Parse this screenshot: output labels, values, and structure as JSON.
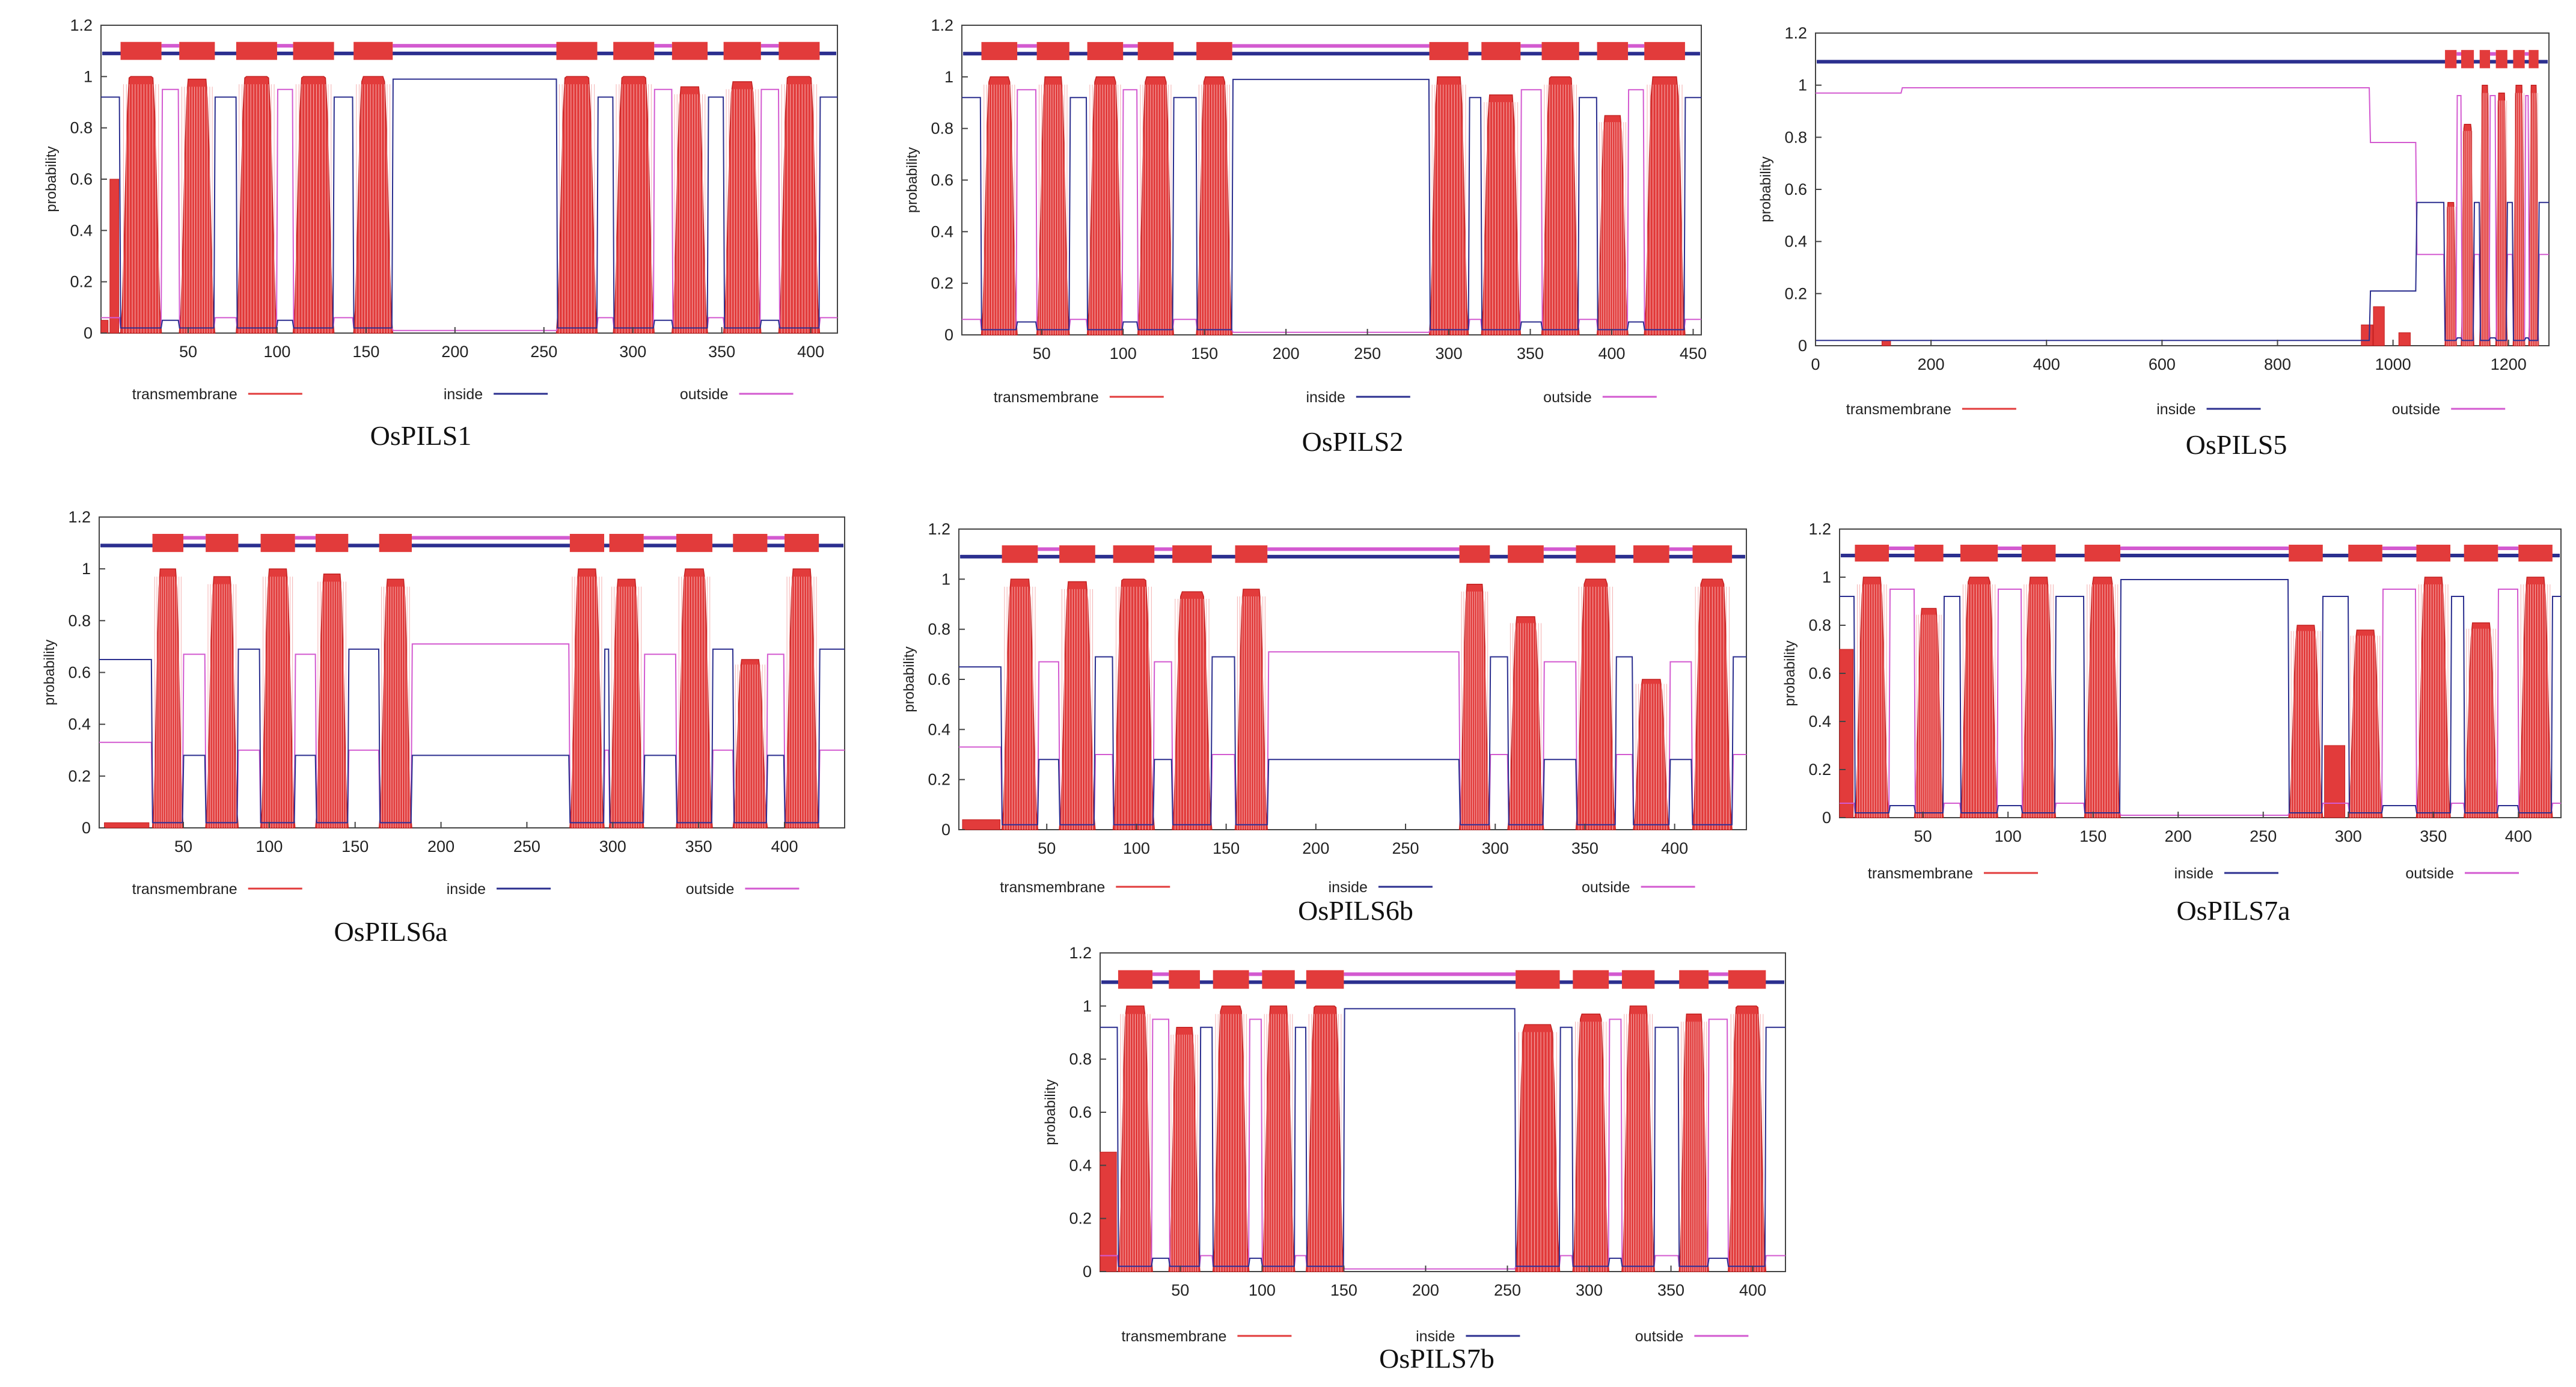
{
  "figure": {
    "panels": [
      "OsPILS1",
      "OsPILS2",
      "OsPILS5",
      "OsPILS6a",
      "OsPILS6b",
      "OsPILS7a",
      "OsPILS7b"
    ]
  },
  "colors": {
    "transmembrane": "#e23b3b",
    "inside": "#2b2f8f",
    "outside": "#d35ad0",
    "frame": "#444444"
  },
  "chart_data": [
    {
      "type": "line",
      "title": "OsPILS1",
      "length": 415,
      "xlim": [
        1,
        415
      ],
      "ylim": [
        0,
        1.2
      ],
      "ylabel": "probability",
      "xticks": [
        50,
        100,
        150,
        200,
        250,
        300,
        350,
        400
      ],
      "yticks": [
        0,
        0.2,
        0.4,
        0.6,
        0.8,
        1,
        1.2
      ],
      "legend": [
        "transmembrane",
        "inside",
        "outside"
      ],
      "tm_segments": [
        [
          12,
          35,
          1.0
        ],
        [
          45,
          65,
          0.99
        ],
        [
          77,
          100,
          1.0
        ],
        [
          109,
          132,
          1.0
        ],
        [
          143,
          165,
          1.0
        ],
        [
          257,
          280,
          1.0
        ],
        [
          289,
          312,
          1.0
        ],
        [
          322,
          342,
          0.96
        ],
        [
          351,
          372,
          0.98
        ],
        [
          382,
          405,
          1.0
        ]
      ],
      "bar_segments": [
        [
          1,
          5,
          0.05
        ],
        [
          6,
          11,
          0.6
        ]
      ],
      "inside_side": "cyto-start-in"
    },
    {
      "type": "line",
      "title": "OsPILS2",
      "length": 455,
      "xlim": [
        1,
        455
      ],
      "ylim": [
        0,
        1.2
      ],
      "ylabel": "probability",
      "xticks": [
        50,
        100,
        150,
        200,
        250,
        300,
        350,
        400,
        450
      ],
      "yticks": [
        0,
        0.2,
        0.4,
        0.6,
        0.8,
        1,
        1.2
      ],
      "legend": [
        "transmembrane",
        "inside",
        "outside"
      ],
      "tm_segments": [
        [
          13,
          35,
          1.0
        ],
        [
          47,
          67,
          1.0
        ],
        [
          78,
          100,
          1.0
        ],
        [
          109,
          131,
          1.0
        ],
        [
          145,
          167,
          1.0
        ],
        [
          288,
          312,
          1.0
        ],
        [
          320,
          344,
          0.93
        ],
        [
          357,
          380,
          1.0
        ],
        [
          391,
          410,
          0.85
        ],
        [
          420,
          445,
          1.0
        ]
      ],
      "bar_segments": [],
      "inside_side": "cyto-start-in"
    },
    {
      "type": "line",
      "title": "OsPILS5",
      "length": 1270,
      "xlim": [
        0,
        1270
      ],
      "ylim": [
        0,
        1.2
      ],
      "ylabel": "probability",
      "xticks": [
        0,
        200,
        400,
        600,
        800,
        1000,
        1200
      ],
      "yticks": [
        0,
        0.2,
        0.4,
        0.6,
        0.8,
        1,
        1.2
      ],
      "legend": [
        "transmembrane",
        "inside",
        "outside"
      ],
      "tm_segments": [
        [
          1090,
          1110,
          0.55
        ],
        [
          1118,
          1140,
          0.85
        ],
        [
          1150,
          1168,
          1.0
        ],
        [
          1178,
          1198,
          0.97
        ],
        [
          1208,
          1228,
          1.0
        ],
        [
          1235,
          1252,
          1.0
        ]
      ],
      "bar_segments": [
        [
          115,
          130,
          0.02
        ],
        [
          945,
          965,
          0.08
        ],
        [
          966,
          985,
          0.15
        ],
        [
          1010,
          1030,
          0.05
        ]
      ],
      "inside_side": "pils5"
    },
    {
      "type": "line",
      "title": "OsPILS6a",
      "length": 435,
      "xlim": [
        1,
        435
      ],
      "ylim": [
        0,
        1.2
      ],
      "ylabel": "probability",
      "xticks": [
        50,
        100,
        150,
        200,
        250,
        300,
        350,
        400
      ],
      "yticks": [
        0,
        0.2,
        0.4,
        0.6,
        0.8,
        1,
        1.2
      ],
      "legend": [
        "transmembrane",
        "inside",
        "outside"
      ],
      "tm_segments": [
        [
          32,
          50,
          1.0
        ],
        [
          63,
          82,
          0.97
        ],
        [
          95,
          115,
          1.0
        ],
        [
          127,
          146,
          0.98
        ],
        [
          164,
          183,
          0.96
        ],
        [
          275,
          295,
          1.0
        ],
        [
          298,
          318,
          0.96
        ],
        [
          337,
          358,
          1.0
        ],
        [
          370,
          390,
          0.65
        ],
        [
          400,
          420,
          1.0
        ]
      ],
      "bar_segments": [
        [
          4,
          30,
          0.02
        ]
      ],
      "inside_side": "pils6"
    },
    {
      "type": "line",
      "title": "OsPILS6b",
      "length": 440,
      "xlim": [
        1,
        440
      ],
      "ylim": [
        0,
        1.2
      ],
      "ylabel": "probability",
      "xticks": [
        50,
        100,
        150,
        200,
        250,
        300,
        350,
        400
      ],
      "yticks": [
        0,
        0.2,
        0.4,
        0.6,
        0.8,
        1,
        1.2
      ],
      "legend": [
        "transmembrane",
        "inside",
        "outside"
      ],
      "tm_segments": [
        [
          25,
          45,
          1.0
        ],
        [
          57,
          77,
          0.99
        ],
        [
          87,
          110,
          1.0
        ],
        [
          120,
          142,
          0.95
        ],
        [
          155,
          173,
          0.96
        ],
        [
          280,
          297,
          0.98
        ],
        [
          307,
          327,
          0.85
        ],
        [
          345,
          367,
          1.0
        ],
        [
          377,
          397,
          0.6
        ],
        [
          410,
          432,
          1.0
        ]
      ],
      "bar_segments": [
        [
          3,
          24,
          0.04
        ]
      ],
      "inside_side": "pils6"
    },
    {
      "type": "line",
      "title": "OsPILS7a",
      "length": 425,
      "xlim": [
        1,
        425
      ],
      "ylim": [
        0,
        1.2
      ],
      "ylabel": "probability",
      "xticks": [
        50,
        100,
        150,
        200,
        250,
        300,
        350,
        400
      ],
      "yticks": [
        0,
        0.2,
        0.4,
        0.6,
        0.8,
        1,
        1.2
      ],
      "legend": [
        "transmembrane",
        "inside",
        "outside"
      ],
      "tm_segments": [
        [
          10,
          30,
          1.0
        ],
        [
          45,
          62,
          0.87
        ],
        [
          72,
          94,
          1.0
        ],
        [
          108,
          128,
          1.0
        ],
        [
          145,
          166,
          1.0
        ],
        [
          265,
          285,
          0.8
        ],
        [
          300,
          320,
          0.78
        ],
        [
          340,
          360,
          1.0
        ],
        [
          368,
          388,
          0.81
        ],
        [
          400,
          420,
          1.0
        ]
      ],
      "bar_segments": [
        [
          1,
          9,
          0.7
        ],
        [
          286,
          298,
          0.3
        ]
      ],
      "inside_side": "cyto-start-in"
    },
    {
      "type": "line",
      "title": "OsPILS7b",
      "length": 420,
      "xlim": [
        1,
        420
      ],
      "ylim": [
        0,
        1.2
      ],
      "ylabel": "probability",
      "xticks": [
        50,
        100,
        150,
        200,
        250,
        300,
        350,
        400
      ],
      "yticks": [
        0,
        0.2,
        0.4,
        0.6,
        0.8,
        1,
        1.2
      ],
      "legend": [
        "transmembrane",
        "inside",
        "outside"
      ],
      "tm_segments": [
        [
          12,
          33,
          1.0
        ],
        [
          43,
          62,
          0.92
        ],
        [
          70,
          92,
          1.0
        ],
        [
          100,
          120,
          1.0
        ],
        [
          127,
          150,
          1.0
        ],
        [
          255,
          282,
          0.93
        ],
        [
          290,
          312,
          0.97
        ],
        [
          320,
          340,
          1.0
        ],
        [
          355,
          373,
          0.97
        ],
        [
          385,
          408,
          1.0
        ]
      ],
      "bar_segments": [
        [
          1,
          11,
          0.45
        ]
      ],
      "inside_side": "cyto-start-in"
    }
  ]
}
